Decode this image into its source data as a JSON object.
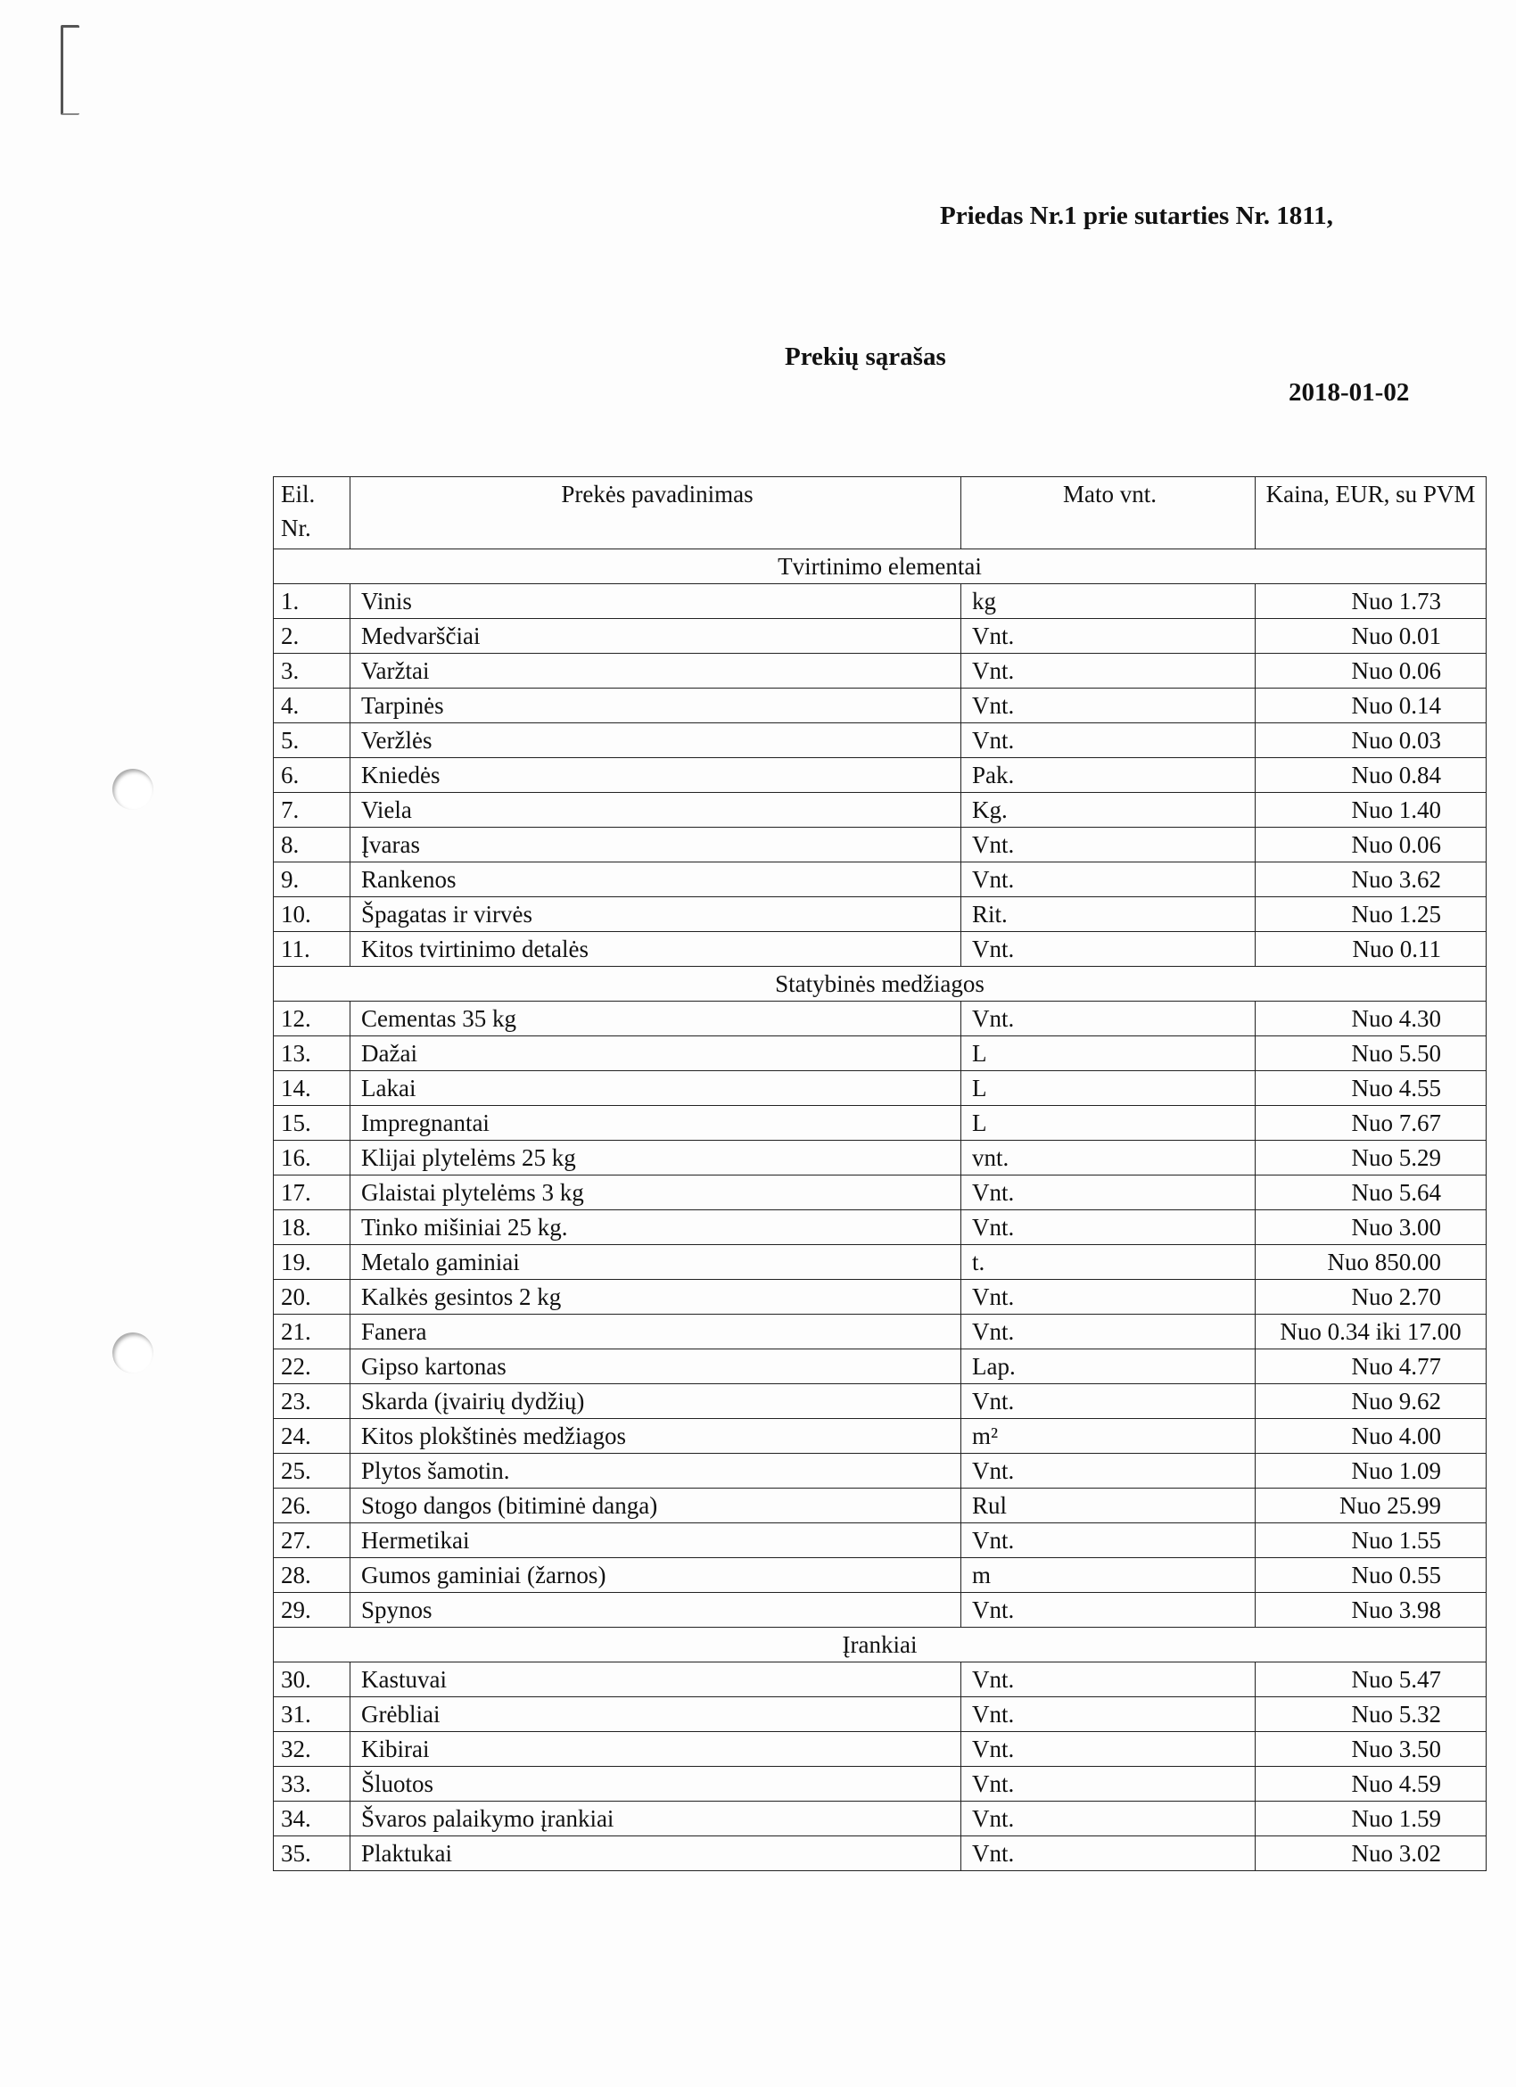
{
  "header": {
    "title": "Priedas Nr.1 prie sutarties Nr. 1811,",
    "subtitle": "Prekių sąrašas",
    "date": "2018-01-02"
  },
  "table": {
    "columns": [
      "Eil. Nr.",
      "Prekės pavadinimas",
      "Mato vnt.",
      "Kaina, EUR, su PVM"
    ],
    "sections": [
      {
        "title": "Tvirtinimo elementai",
        "rows": [
          [
            "1.",
            "Vinis",
            "kg",
            "Nuo 1.73"
          ],
          [
            "2.",
            "Medvarščiai",
            "Vnt.",
            "Nuo 0.01"
          ],
          [
            "3.",
            "Varžtai",
            "Vnt.",
            "Nuo 0.06"
          ],
          [
            "4.",
            "Tarpinės",
            "Vnt.",
            "Nuo 0.14"
          ],
          [
            "5.",
            "Veržlės",
            "Vnt.",
            "Nuo 0.03"
          ],
          [
            "6.",
            "Kniedės",
            "Pak.",
            "Nuo 0.84"
          ],
          [
            "7.",
            "Viela",
            "Kg.",
            "Nuo 1.40"
          ],
          [
            "8.",
            "Įvaras",
            "Vnt.",
            "Nuo 0.06"
          ],
          [
            "9.",
            "Rankenos",
            "Vnt.",
            "Nuo 3.62"
          ],
          [
            "10.",
            "Špagatas ir virvės",
            "Rit.",
            "Nuo 1.25"
          ],
          [
            "11.",
            "Kitos tvirtinimo detalės",
            "Vnt.",
            "Nuo 0.11"
          ]
        ]
      },
      {
        "title": "Statybinės medžiagos",
        "rows": [
          [
            "12.",
            "Cementas 35 kg",
            "Vnt.",
            "Nuo 4.30"
          ],
          [
            "13.",
            "Dažai",
            "L",
            "Nuo 5.50"
          ],
          [
            "14.",
            "Lakai",
            "L",
            "Nuo 4.55"
          ],
          [
            "15.",
            "Impregnantai",
            "L",
            "Nuo 7.67"
          ],
          [
            "16.",
            "Klijai plytelėms 25 kg",
            "vnt.",
            "Nuo 5.29"
          ],
          [
            "17.",
            "Glaistai plytelėms 3 kg",
            "Vnt.",
            "Nuo 5.64"
          ],
          [
            "18.",
            "Tinko mišiniai  25 kg.",
            "Vnt.",
            "Nuo 3.00"
          ],
          [
            "19.",
            "Metalo gaminiai",
            "t.",
            "Nuo 850.00"
          ],
          [
            "20.",
            "Kalkės gesintos 2 kg",
            "Vnt.",
            "Nuo 2.70"
          ],
          [
            "21.",
            "Fanera",
            "Vnt.",
            "Nuo 0.34 iki 17.00"
          ],
          [
            "22.",
            "Gipso kartonas",
            "Lap.",
            "Nuo 4.77"
          ],
          [
            "23.",
            "Skarda (įvairių dydžių)",
            "Vnt.",
            "Nuo 9.62"
          ],
          [
            "24.",
            "Kitos plokštinės medžiagos",
            "m²",
            "Nuo 4.00"
          ],
          [
            "25.",
            "Plytos šamotin.",
            "Vnt.",
            "Nuo 1.09"
          ],
          [
            "26.",
            "Stogo dangos (bitiminė danga)",
            "Rul",
            "Nuo 25.99"
          ],
          [
            "27.",
            "Hermetikai",
            "Vnt.",
            "Nuo 1.55"
          ],
          [
            "28.",
            "Gumos gaminiai (žarnos)",
            "m",
            "Nuo 0.55"
          ],
          [
            "29.",
            "Spynos",
            "Vnt.",
            "Nuo 3.98"
          ]
        ]
      },
      {
        "title": "Įrankiai",
        "rows": [
          [
            "30.",
            "Kastuvai",
            "Vnt.",
            "Nuo 5.47"
          ],
          [
            "31.",
            "Grėbliai",
            "Vnt.",
            "Nuo 5.32"
          ],
          [
            "32.",
            "Kibirai",
            "Vnt.",
            "Nuo 3.50"
          ],
          [
            "33.",
            "Šluotos",
            "Vnt.",
            "Nuo 4.59"
          ],
          [
            "34.",
            "Švaros palaikymo įrankiai",
            "Vnt.",
            "Nuo 1.59"
          ],
          [
            "35.",
            "Plaktukai",
            "Vnt.",
            "Nuo 3.02"
          ]
        ]
      }
    ]
  }
}
